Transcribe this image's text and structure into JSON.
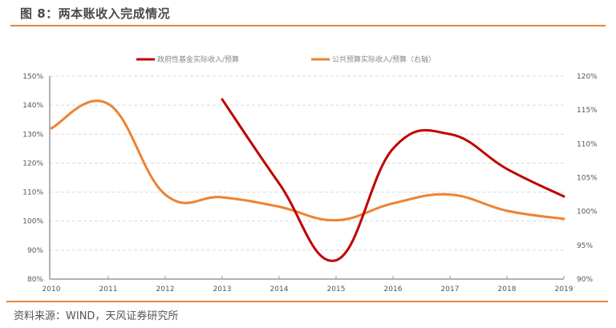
{
  "header": {
    "title": "图 8：两本账收入完成情况"
  },
  "footer": {
    "source": "资料来源：WIND，天风证券研究所"
  },
  "colors": {
    "accent_rule": "#e8863a",
    "series_gov_fund": "#c00000",
    "series_public_budget": "#ee8232",
    "grid": "#d9d9d9",
    "axis": "#999999"
  },
  "chart_data": {
    "type": "line",
    "title": "两本账收入完成情况",
    "xlabel": "",
    "ylabel": "",
    "x": [
      "2010",
      "2011",
      "2012",
      "2013",
      "2014",
      "2015",
      "2016",
      "2017",
      "2018",
      "2019"
    ],
    "series": [
      {
        "name": "政府性基金实际收入/预算",
        "axis": "left",
        "color": "#c00000",
        "values": [
          null,
          null,
          null,
          142,
          113,
          86.5,
          125,
          130,
          118,
          108.5
        ]
      },
      {
        "name": "公共预算实际收入/预算（右轴）",
        "axis": "right",
        "color": "#ee8232",
        "values": [
          112.3,
          115.9,
          102.5,
          102.1,
          100.7,
          98.7,
          101.2,
          102.5,
          100.1,
          98.9
        ]
      }
    ],
    "left_axis": {
      "ylim": [
        80,
        150
      ],
      "ticks": [
        "80%",
        "90%",
        "100%",
        "110%",
        "120%",
        "130%",
        "140%",
        "150%"
      ]
    },
    "right_axis": {
      "ylim": [
        90,
        120
      ],
      "ticks": [
        "90%",
        "95%",
        "100%",
        "105%",
        "110%",
        "115%",
        "120%"
      ]
    },
    "grid": true,
    "legend_position": "top",
    "smooth": true
  },
  "legend": [
    {
      "label": "政府性基金实际收入/预算"
    },
    {
      "label": "公共预算实际收入/预算（右轴）"
    }
  ]
}
